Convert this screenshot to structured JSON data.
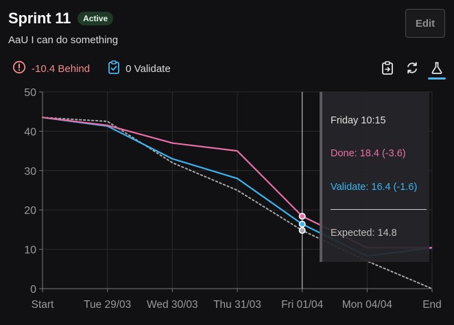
{
  "header": {
    "title": "Sprint 11",
    "badge": "Active",
    "subtitle": "AaU I can do something",
    "edit_label": "Edit"
  },
  "status": {
    "behind_label": "-10.4 Behind",
    "validate_label": "0 Validate"
  },
  "toolbar": {
    "icons": [
      "clipboard-icon",
      "refresh-icon",
      "flask-icon"
    ],
    "active": "flask-icon"
  },
  "colors": {
    "done": "#ea6fa8",
    "validate": "#3cb4ee",
    "expected": "#a8a8a8",
    "accent": "#4fb6ef"
  },
  "tooltip": {
    "time": "Friday 10:15",
    "done": "Done: 18.4 (-3.6)",
    "validate": "Validate: 16.4 (-1.6)",
    "expected": "Expected: 14.8"
  },
  "chart_data": {
    "type": "line",
    "categories": [
      "Start",
      "Tue 29/03",
      "Wed 30/03",
      "Thu 31/03",
      "Fri 01/04",
      "Mon 04/04",
      "End"
    ],
    "ylim": [
      0,
      50
    ],
    "yticks": [
      0,
      10,
      20,
      30,
      40,
      50
    ],
    "grid": true,
    "hover_x": 4.0,
    "series": [
      {
        "name": "Done",
        "style": "solid",
        "x": [
          0,
          1,
          2,
          3,
          4.0,
          5,
          6
        ],
        "values": [
          43.5,
          41.5,
          37,
          35,
          18.4,
          10.4,
          10.4
        ]
      },
      {
        "name": "Validate",
        "style": "solid",
        "x": [
          0,
          1,
          2,
          3,
          4.0,
          5,
          6
        ],
        "values": [
          43.5,
          41.3,
          33,
          28,
          16.4,
          8.3,
          10.4
        ]
      },
      {
        "name": "Expected",
        "style": "dotted",
        "x": [
          0,
          1,
          2,
          3,
          4.0,
          5,
          6
        ],
        "values": [
          43.5,
          42.5,
          32,
          25,
          14.8,
          7,
          0
        ]
      }
    ]
  }
}
